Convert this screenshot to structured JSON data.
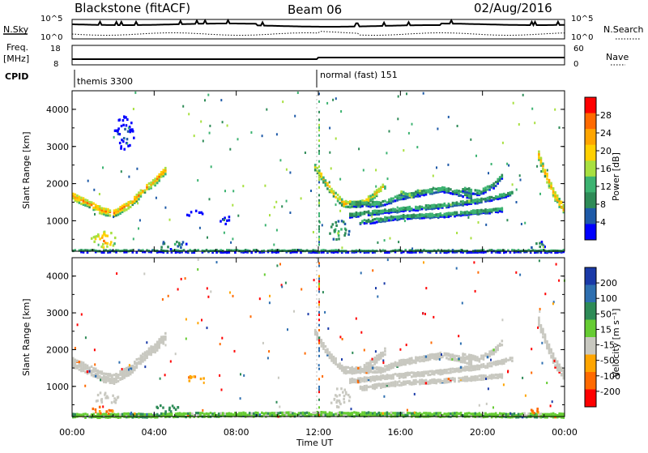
{
  "header": {
    "title_left": "Blackstone (fitACF)",
    "title_center": "Beam 06",
    "title_right": "02/Aug/2016"
  },
  "summary_panels": {
    "nsky_label": "N.Sky",
    "nsky_ticks": [
      "10^5",
      "10^0"
    ],
    "nsearch_label": "N.Search",
    "nsearch_ticks": [
      "10^5",
      "10^0"
    ],
    "freq_label": "Freq.",
    "freq_unit": "[MHz]",
    "freq_ticks": [
      "18",
      "8"
    ],
    "nave_label": "Nave",
    "nave_ticks": [
      "60",
      "0"
    ],
    "cpid_label": "CPID",
    "cpid_segments": [
      {
        "label": "themis 3300",
        "start_hour": 0
      },
      {
        "label": "normal (fast) 151",
        "start_hour": 12
      }
    ]
  },
  "axes": {
    "ylabel": "Slant Range [km]",
    "yticks": [
      "4000",
      "3000",
      "2000",
      "1000"
    ],
    "xticks": [
      "00:00",
      "04:00",
      "08:00",
      "12:00",
      "16:00",
      "20:00",
      "00:00"
    ],
    "xlabel": "Time UT"
  },
  "colorbars": {
    "power": {
      "label": "Power [dB]",
      "ticks": [
        "28",
        "24",
        "20",
        "16",
        "12",
        "8",
        "4"
      ],
      "colors": [
        "#ff0000",
        "#ff6a00",
        "#ffa500",
        "#ffd000",
        "#a8e040",
        "#3cb371",
        "#2e8b57",
        "#1e5aa8",
        "#0000ff"
      ]
    },
    "velocity": {
      "label": "Velocity [m s⁻¹]",
      "ticks": [
        "200",
        "100",
        "50",
        "15",
        "-15",
        "-50",
        "-100",
        "-200"
      ],
      "colors": [
        "#1a3aa8",
        "#2e6fb0",
        "#2e8b57",
        "#66cc33",
        "#c8c8c0",
        "#ffa500",
        "#ff6a00",
        "#ff0000"
      ]
    }
  },
  "chart_data": [
    {
      "type": "heatmap",
      "name": "Power",
      "x_range_hours": [
        0,
        24
      ],
      "y_range_km": [
        180,
        4500
      ],
      "features": [
        {
          "shape": "band",
          "points": [
            [
              0.0,
              1700
            ],
            [
              0.8,
              1500
            ],
            [
              1.5,
              1300
            ],
            [
              2.0,
              1250
            ],
            [
              2.8,
              1500
            ],
            [
              3.5,
              1900
            ],
            [
              4.0,
              2100
            ],
            [
              4.5,
              2400
            ]
          ],
          "width_km": 200,
          "power_db": 22
        },
        {
          "shape": "band",
          "points": [
            [
              11.8,
              2500
            ],
            [
              12.5,
              1900
            ],
            [
              13.2,
              1500
            ],
            [
              14.0,
              1500
            ],
            [
              14.6,
              1700
            ],
            [
              15.2,
              2000
            ]
          ],
          "width_km": 180,
          "power_db": 20
        },
        {
          "shape": "band",
          "points": [
            [
              13.5,
              1500
            ],
            [
              15.0,
              1500
            ],
            [
              16.0,
              1700
            ],
            [
              17.0,
              1800
            ],
            [
              18.0,
              1900
            ],
            [
              18.8,
              1800
            ],
            [
              19.5,
              1700
            ]
          ],
          "width_km": 150,
          "power_db": 14
        },
        {
          "shape": "band",
          "points": [
            [
              14.0,
              1000
            ],
            [
              16.0,
              1150
            ],
            [
              18.0,
              1200
            ],
            [
              20.0,
              1300
            ],
            [
              21.0,
              1350
            ]
          ],
          "width_km": 120,
          "power_db": 14
        },
        {
          "shape": "band",
          "points": [
            [
              13.5,
              1200
            ],
            [
              16.0,
              1350
            ],
            [
              18.0,
              1450
            ],
            [
              20.0,
              1600
            ],
            [
              21.5,
              1800
            ]
          ],
          "width_km": 120,
          "power_db": 14
        },
        {
          "shape": "band",
          "points": [
            [
              22.7,
              2800
            ],
            [
              23.1,
              2200
            ],
            [
              23.5,
              1700
            ],
            [
              24.0,
              1300
            ]
          ],
          "width_km": 250,
          "power_db": 22
        },
        {
          "shape": "band",
          "points": [
            [
              19.0,
              1900
            ],
            [
              19.8,
              1800
            ],
            [
              20.5,
              2000
            ],
            [
              21.0,
              2300
            ]
          ],
          "width_km": 150,
          "power_db": 14
        },
        {
          "shape": "band",
          "points": [
            [
              16.0,
              1800
            ],
            [
              16.5,
              1700
            ],
            [
              17.0,
              1900
            ]
          ],
          "width_km": 120,
          "power_db": 16
        },
        {
          "shape": "band",
          "points": [
            [
              0.0,
              230
            ],
            [
              12.0,
              230
            ],
            [
              24.0,
              230
            ]
          ],
          "width_km": 90,
          "power_db": 10
        },
        {
          "shape": "blob",
          "center": [
            1.5,
            520
          ],
          "size": [
            1.3,
            450
          ],
          "power_db": 24
        },
        {
          "shape": "blob",
          "center": [
            4.8,
            380
          ],
          "size": [
            1.5,
            250
          ],
          "power_db": 14
        },
        {
          "shape": "blob",
          "center": [
            5.8,
            1240
          ],
          "size": [
            1.2,
            140
          ],
          "power_db": 10
        },
        {
          "shape": "blob",
          "center": [
            13.0,
            750
          ],
          "size": [
            1.0,
            600
          ],
          "power_db": 16
        },
        {
          "shape": "blob",
          "center": [
            2.5,
            3400
          ],
          "size": [
            1.0,
            900
          ],
          "power_db": 8
        },
        {
          "shape": "blob",
          "center": [
            22.6,
            380
          ],
          "size": [
            0.9,
            200
          ],
          "power_db": 14
        },
        {
          "shape": "blob",
          "center": [
            7.4,
            1050
          ],
          "size": [
            0.6,
            300
          ],
          "power_db": 8
        }
      ]
    },
    {
      "type": "heatmap",
      "name": "Velocity",
      "x_range_hours": [
        0,
        24
      ],
      "y_range_km": [
        180,
        4500
      ],
      "features": [
        {
          "shape": "band",
          "points": [
            [
              0.0,
              1700
            ],
            [
              0.8,
              1500
            ],
            [
              1.5,
              1300
            ],
            [
              2.0,
              1250
            ],
            [
              2.8,
              1500
            ],
            [
              3.5,
              1900
            ],
            [
              4.0,
              2100
            ],
            [
              4.5,
              2400
            ]
          ],
          "width_km": 260,
          "velocity": 0
        },
        {
          "shape": "band",
          "points": [
            [
              11.8,
              2500
            ],
            [
              12.5,
              1900
            ],
            [
              13.2,
              1500
            ],
            [
              14.0,
              1500
            ],
            [
              14.6,
              1700
            ],
            [
              15.2,
              2000
            ]
          ],
          "width_km": 200,
          "velocity": 0
        },
        {
          "shape": "band",
          "points": [
            [
              13.5,
              1500
            ],
            [
              15.0,
              1500
            ],
            [
              16.0,
              1700
            ],
            [
              17.0,
              1800
            ],
            [
              18.0,
              1900
            ],
            [
              18.8,
              1800
            ],
            [
              19.5,
              1700
            ]
          ],
          "width_km": 160,
          "velocity": 0
        },
        {
          "shape": "band",
          "points": [
            [
              14.0,
              1000
            ],
            [
              16.0,
              1150
            ],
            [
              18.0,
              1200
            ],
            [
              20.0,
              1300
            ],
            [
              21.0,
              1350
            ]
          ],
          "width_km": 130,
          "velocity": 0
        },
        {
          "shape": "band",
          "points": [
            [
              13.5,
              1200
            ],
            [
              16.0,
              1350
            ],
            [
              18.0,
              1450
            ],
            [
              20.0,
              1600
            ],
            [
              21.5,
              1800
            ]
          ],
          "width_km": 130,
          "velocity": 0
        },
        {
          "shape": "band",
          "points": [
            [
              22.7,
              2800
            ],
            [
              23.1,
              2200
            ],
            [
              23.5,
              1700
            ],
            [
              24.0,
              1300
            ]
          ],
          "width_km": 260,
          "velocity": 0
        },
        {
          "shape": "band",
          "points": [
            [
              19.0,
              1900
            ],
            [
              19.8,
              1800
            ],
            [
              20.5,
              2000
            ],
            [
              21.0,
              2300
            ]
          ],
          "width_km": 150,
          "velocity": 0
        },
        {
          "shape": "band",
          "points": [
            [
              0.0,
              250
            ],
            [
              12.0,
              300
            ],
            [
              24.0,
              260
            ]
          ],
          "width_km": 120,
          "velocity": 25
        },
        {
          "shape": "blob",
          "center": [
            1.5,
            380
          ],
          "size": [
            1.2,
            200
          ],
          "velocity": -60
        },
        {
          "shape": "blob",
          "center": [
            1.6,
            700
          ],
          "size": [
            1.3,
            350
          ],
          "velocity": 0
        },
        {
          "shape": "blob",
          "center": [
            4.5,
            430
          ],
          "size": [
            1.4,
            200
          ],
          "velocity": 60
        },
        {
          "shape": "blob",
          "center": [
            5.8,
            1240
          ],
          "size": [
            1.2,
            140
          ],
          "velocity": -40
        },
        {
          "shape": "blob",
          "center": [
            22.6,
            380
          ],
          "size": [
            0.9,
            180
          ],
          "velocity": -60
        },
        {
          "shape": "blob",
          "center": [
            13.0,
            750
          ],
          "size": [
            1.0,
            600
          ],
          "velocity": 0
        }
      ]
    }
  ]
}
